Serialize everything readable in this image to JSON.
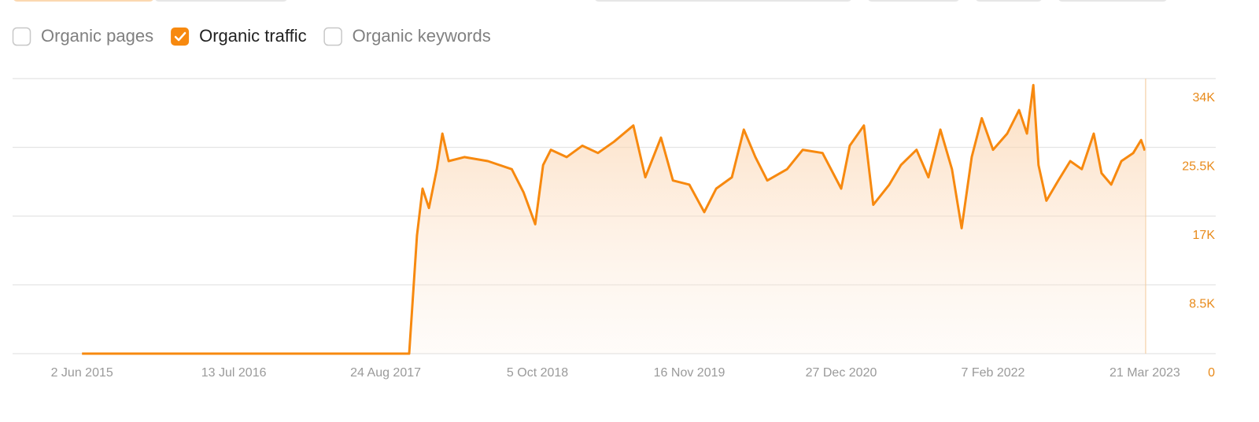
{
  "controls": [
    {
      "label": "Organic pages",
      "checked": false
    },
    {
      "label": "Organic traffic",
      "checked": true
    },
    {
      "label": "Organic keywords",
      "checked": false
    }
  ],
  "chart_data": {
    "type": "area",
    "color": "#f7890f",
    "grid": true,
    "x": [
      "2015-06-02",
      "2017-10-26",
      "2017-11-16",
      "2017-12-01",
      "2017-12-18",
      "2018-01-08",
      "2018-01-23",
      "2018-02-09",
      "2018-03-23",
      "2018-05-25",
      "2018-07-28",
      "2018-08-29",
      "2018-09-29",
      "2018-10-20",
      "2018-11-10",
      "2018-12-22",
      "2019-02-02",
      "2019-03-16",
      "2019-04-28",
      "2019-06-19",
      "2019-07-21",
      "2019-09-01",
      "2019-10-03",
      "2019-11-16",
      "2019-12-26",
      "2020-01-27",
      "2020-03-09",
      "2020-04-10",
      "2020-05-11",
      "2020-06-12",
      "2020-08-04",
      "2020-09-15",
      "2020-11-07",
      "2020-12-27",
      "2021-01-19",
      "2021-02-26",
      "2021-03-23",
      "2021-05-05",
      "2021-06-05",
      "2021-07-17",
      "2021-08-18",
      "2021-09-19",
      "2021-10-20",
      "2021-11-15",
      "2021-12-12",
      "2022-01-08",
      "2022-02-07",
      "2022-03-17",
      "2022-04-18",
      "2022-05-09",
      "2022-05-26",
      "2022-06-09",
      "2022-06-30",
      "2022-08-01",
      "2022-09-02",
      "2022-10-03",
      "2022-11-04",
      "2022-11-25",
      "2022-12-21",
      "2023-01-17",
      "2023-02-18",
      "2023-03-11",
      "2023-03-21"
    ],
    "values": [
      0,
      0,
      14600,
      20400,
      18000,
      22800,
      27200,
      23800,
      24300,
      23800,
      22800,
      19900,
      16000,
      23300,
      25200,
      24300,
      25700,
      24800,
      26200,
      28200,
      21800,
      26700,
      21400,
      20900,
      17500,
      20400,
      21800,
      27700,
      24300,
      21400,
      22800,
      25200,
      24800,
      20400,
      25700,
      28200,
      18400,
      20900,
      23300,
      25200,
      21800,
      27700,
      22800,
      15500,
      24300,
      29100,
      25200,
      27200,
      30100,
      27200,
      33200,
      23300,
      18900,
      21400,
      23800,
      22800,
      27200,
      22300,
      20900,
      23800,
      24800,
      26400,
      25100
    ],
    "xlim": [
      "2014-11-28",
      "2023-09-27"
    ],
    "xticks": [
      {
        "value": "2015-06-02",
        "label": "2 Jun 2015"
      },
      {
        "value": "2016-07-13",
        "label": "13 Jul 2016"
      },
      {
        "value": "2017-08-24",
        "label": "24 Aug 2017"
      },
      {
        "value": "2018-10-05",
        "label": "5 Oct 2018"
      },
      {
        "value": "2019-11-16",
        "label": "16 Nov 2019"
      },
      {
        "value": "2020-12-27",
        "label": "27 Dec 2020"
      },
      {
        "value": "2022-02-07",
        "label": "7 Feb 2022"
      },
      {
        "value": "2023-03-21",
        "label": "21 Mar 2023"
      }
    ],
    "ylim": [
      0,
      34000
    ],
    "yticks": [
      0,
      {
        "value": 8500,
        "label": "8.5K"
      },
      {
        "value": 17000,
        "label": "17K"
      },
      {
        "value": 25500,
        "label": "25.5K"
      },
      {
        "value": 34000,
        "label": "34K"
      }
    ]
  }
}
